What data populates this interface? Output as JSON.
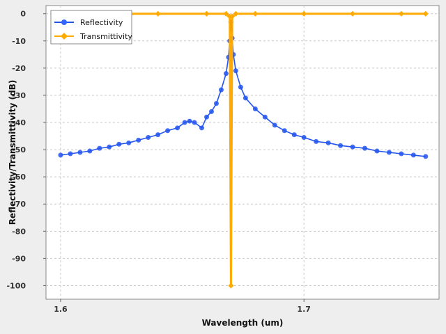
{
  "chart_data": {
    "type": "line",
    "title": "",
    "xlabel": "Wavelength (um)",
    "ylabel": "Reflectivity/Transmittivity (dB)",
    "xlim": [
      1.594,
      1.7555
    ],
    "ylim": [
      -105,
      3
    ],
    "x_ticks": [
      1.6,
      1.7
    ],
    "x_tick_labels": [
      "1.6",
      "1.7"
    ],
    "y_ticks": [
      0,
      -10,
      -20,
      -30,
      -40,
      -50,
      -60,
      -70,
      -80,
      -90,
      -100
    ],
    "y_tick_labels": [
      "0",
      "-10",
      "-20",
      "-30",
      "-40",
      "-50",
      "-60",
      "-70",
      "-80",
      "-90",
      "-100"
    ],
    "grid": true,
    "legend_position": "top-left",
    "series": [
      {
        "name": "Reflectivity",
        "color": "#2255ee",
        "marker": "circle",
        "x": [
          1.6,
          1.604,
          1.608,
          1.612,
          1.616,
          1.62,
          1.624,
          1.628,
          1.632,
          1.636,
          1.64,
          1.644,
          1.648,
          1.651,
          1.653,
          1.655,
          1.658,
          1.66,
          1.662,
          1.664,
          1.666,
          1.668,
          1.669,
          1.6695,
          1.67,
          1.6705,
          1.671,
          1.672,
          1.674,
          1.676,
          1.68,
          1.684,
          1.688,
          1.692,
          1.696,
          1.7,
          1.705,
          1.71,
          1.715,
          1.72,
          1.725,
          1.73,
          1.735,
          1.74,
          1.745,
          1.75
        ],
        "values": [
          -52,
          -51.5,
          -51,
          -50.5,
          -49.5,
          -49,
          -48,
          -47.5,
          -46.5,
          -45.5,
          -44.5,
          -43,
          -42,
          -40,
          -39.5,
          -40,
          -42,
          -38,
          -36,
          -33,
          -28,
          -22,
          -16,
          -10,
          -3,
          -9,
          -15,
          -21,
          -27,
          -31,
          -35,
          -38,
          -41,
          -43,
          -44.5,
          -45.5,
          -47,
          -47.5,
          -48.5,
          -49,
          -49.5,
          -50.5,
          -51,
          -51.5,
          -52,
          -52.5
        ]
      },
      {
        "name": "Transmittivity",
        "color": "#ffaa00",
        "marker": "diamond",
        "x": [
          1.6,
          1.62,
          1.64,
          1.66,
          1.668,
          1.6695,
          1.67,
          1.6705,
          1.672,
          1.68,
          1.7,
          1.72,
          1.74,
          1.75
        ],
        "values": [
          0,
          0,
          0,
          0,
          0,
          -1,
          -100,
          -1,
          0,
          0,
          0,
          0,
          0,
          0
        ]
      }
    ]
  }
}
